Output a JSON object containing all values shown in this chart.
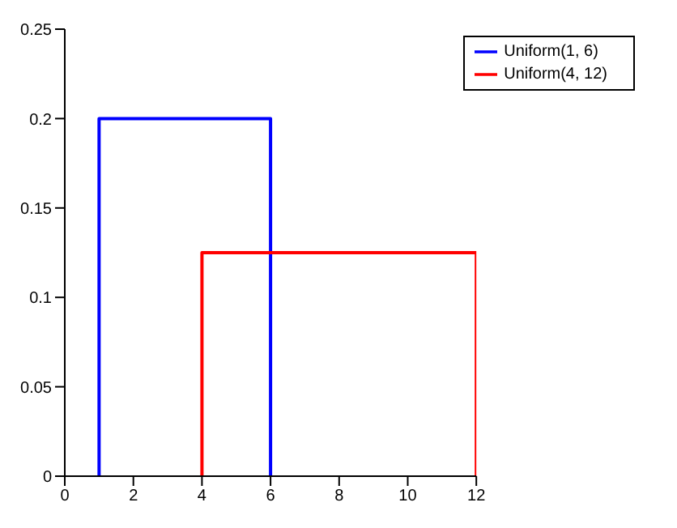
{
  "chart_data": {
    "type": "line",
    "xlim": [
      0,
      12
    ],
    "xticks": [
      0,
      2,
      4,
      6,
      8,
      10,
      12
    ],
    "ylim": [
      0,
      0.25
    ],
    "yticks": [
      0,
      0.05,
      0.1,
      0.15,
      0.2,
      0.25
    ],
    "grid": false,
    "legend": "top right",
    "marker": "none",
    "line_style": "solid",
    "series": [
      {
        "name": "Uniform(1, 6)",
        "color": "#0000ff",
        "x": [
          1,
          1,
          6,
          6
        ],
        "values": [
          0,
          0.2,
          0.2,
          0
        ]
      },
      {
        "name": "Uniform(4, 12)",
        "color": "#ff0000",
        "x": [
          4,
          4,
          12,
          12
        ],
        "values": [
          0,
          0.125,
          0.125,
          0
        ]
      }
    ]
  }
}
